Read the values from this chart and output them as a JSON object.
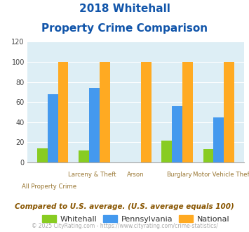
{
  "title_line1": "2018 Whitehall",
  "title_line2": "Property Crime Comparison",
  "categories": [
    "All Property Crime",
    "Larceny & Theft",
    "Arson",
    "Burglary",
    "Motor Vehicle Theft"
  ],
  "whitehall": [
    14,
    12,
    0,
    22,
    13
  ],
  "pennsylvania": [
    68,
    74,
    0,
    56,
    45
  ],
  "national": [
    100,
    100,
    100,
    100,
    100
  ],
  "ylim": [
    0,
    120
  ],
  "yticks": [
    0,
    20,
    40,
    60,
    80,
    100,
    120
  ],
  "color_whitehall": "#88cc22",
  "color_pennsylvania": "#4499ee",
  "color_national": "#ffaa22",
  "title_color": "#1155aa",
  "bg_color": "#ddeef5",
  "footer_text": "Compared to U.S. average. (U.S. average equals 100)",
  "copyright_text": "© 2025 CityRating.com - https://www.cityrating.com/crime-statistics/",
  "legend_labels": [
    "Whitehall",
    "Pennsylvania",
    "National"
  ],
  "bar_width": 0.25,
  "group_positions": [
    0,
    1,
    2,
    3,
    4
  ],
  "top_labels": [
    "",
    "Larceny & Theft",
    "Arson",
    "Burglary",
    "Motor Vehicle Theft"
  ],
  "bottom_labels": [
    "All Property Crime",
    "",
    "",
    "",
    ""
  ]
}
